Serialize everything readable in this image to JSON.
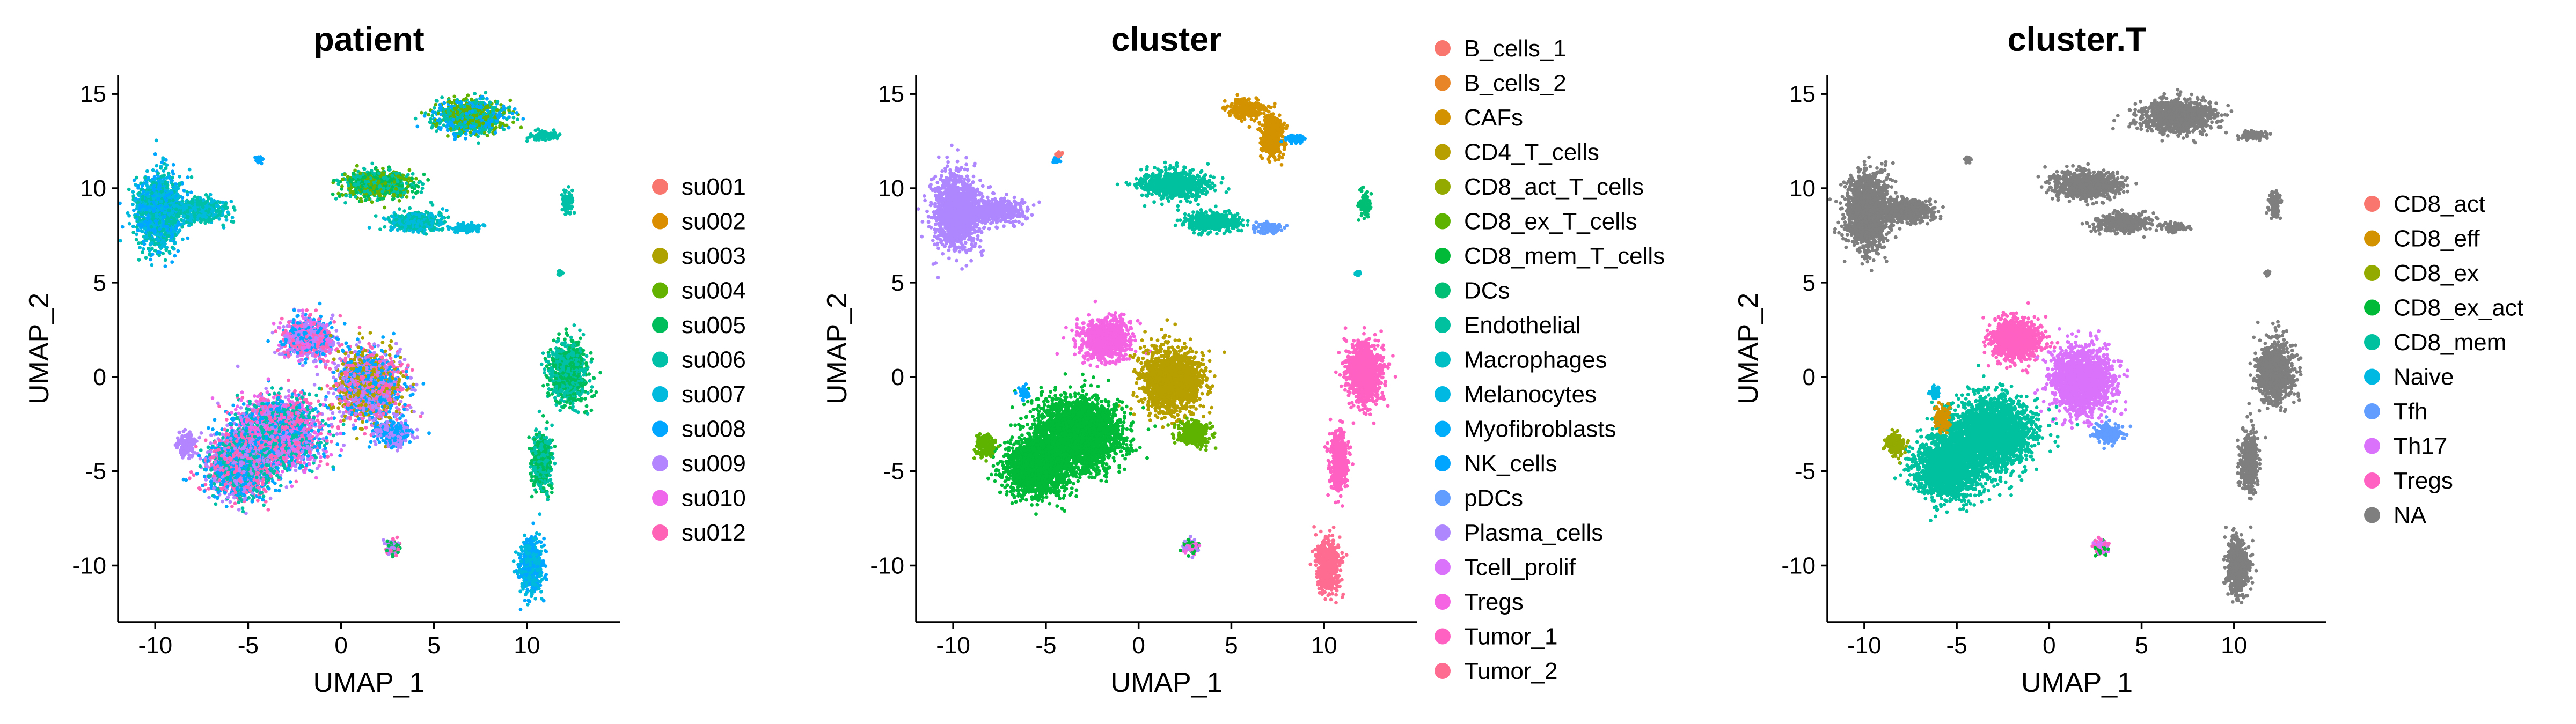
{
  "chart_data": [
    {
      "type": "scatter",
      "title": "patient",
      "xlabel": "UMAP_1",
      "ylabel": "UMAP_2",
      "xlim": [
        -12,
        15
      ],
      "ylim": [
        -13,
        16
      ],
      "xticks": [
        "-10",
        "-5",
        "0",
        "5",
        "10"
      ],
      "yticks": [
        "-10",
        "-5",
        "0",
        "5",
        "10",
        "15"
      ],
      "legend_position": "right",
      "series": [
        {
          "name": "su001",
          "color": "#F8766D"
        },
        {
          "name": "su002",
          "color": "#DB8E00"
        },
        {
          "name": "su003",
          "color": "#AEA200"
        },
        {
          "name": "su004",
          "color": "#64B200"
        },
        {
          "name": "su005",
          "color": "#00BD5C"
        },
        {
          "name": "su006",
          "color": "#00C1A7"
        },
        {
          "name": "su007",
          "color": "#00BADE"
        },
        {
          "name": "su008",
          "color": "#00A6FF"
        },
        {
          "name": "su009",
          "color": "#B385FF"
        },
        {
          "name": "su010",
          "color": "#EF67EB"
        },
        {
          "name": "su012",
          "color": "#FF63B6"
        }
      ],
      "clusters": [
        {
          "x": -9.8,
          "y": 8.8,
          "sx": 1.0,
          "sy": 1.6,
          "colors": [
            "#00C1A7",
            "#00BADE",
            "#00A6FF"
          ]
        },
        {
          "x": -7.6,
          "y": 8.8,
          "sx": 1.1,
          "sy": 0.5,
          "colors": [
            "#00C1A7",
            "#00BADE"
          ]
        },
        {
          "x": -4.4,
          "y": 11.5,
          "sx": 0.15,
          "sy": 0.15,
          "colors": [
            "#00A6FF"
          ]
        },
        {
          "x": 7.0,
          "y": 13.8,
          "sx": 1.6,
          "sy": 0.7,
          "colors": [
            "#00C1A7",
            "#64B200",
            "#00A6FF"
          ]
        },
        {
          "x": 11.0,
          "y": 12.8,
          "sx": 0.6,
          "sy": 0.2,
          "colors": [
            "#00C1A7"
          ]
        },
        {
          "x": 2.0,
          "y": 10.2,
          "sx": 1.5,
          "sy": 0.6,
          "colors": [
            "#00BD5C",
            "#00C1A7",
            "#64B200"
          ]
        },
        {
          "x": 4.0,
          "y": 8.2,
          "sx": 1.2,
          "sy": 0.4,
          "colors": [
            "#00C1A7",
            "#00BADE"
          ]
        },
        {
          "x": 6.8,
          "y": 7.9,
          "sx": 0.6,
          "sy": 0.2,
          "colors": [
            "#00BADE"
          ]
        },
        {
          "x": 12.2,
          "y": 9.2,
          "sx": 0.25,
          "sy": 0.5,
          "colors": [
            "#00C1A7"
          ]
        },
        {
          "x": 11.8,
          "y": 5.5,
          "sx": 0.1,
          "sy": 0.1,
          "colors": [
            "#00C1A7"
          ]
        },
        {
          "x": 12.2,
          "y": 0.2,
          "sx": 0.8,
          "sy": 1.3,
          "colors": [
            "#00C1A7",
            "#00BD5C"
          ]
        },
        {
          "x": 10.8,
          "y": -4.5,
          "sx": 0.4,
          "sy": 1.3,
          "colors": [
            "#00BD5C",
            "#00C1A7"
          ]
        },
        {
          "x": 10.2,
          "y": -10.0,
          "sx": 0.5,
          "sy": 1.2,
          "colors": [
            "#00A6FF",
            "#00BADE"
          ]
        },
        {
          "x": 2.8,
          "y": -9.0,
          "sx": 0.35,
          "sy": 0.35,
          "colors": [
            "#B385FF",
            "#00BD5C",
            "#FF63B6"
          ]
        },
        {
          "x": -1.8,
          "y": 2.0,
          "sx": 1.1,
          "sy": 0.9,
          "colors": [
            "#B385FF",
            "#EF67EB",
            "#FF63B6",
            "#00A6FF"
          ]
        },
        {
          "x": 1.5,
          "y": -0.5,
          "sx": 1.4,
          "sy": 1.5,
          "colors": [
            "#FF63B6",
            "#B385FF",
            "#AEA200",
            "#00A6FF"
          ]
        },
        {
          "x": 2.8,
          "y": -3.0,
          "sx": 0.8,
          "sy": 0.5,
          "colors": [
            "#B385FF",
            "#00A6FF"
          ]
        },
        {
          "x": -3.5,
          "y": -3.0,
          "sx": 1.9,
          "sy": 1.5,
          "colors": [
            "#FF63B6",
            "#B385FF",
            "#00A6FF",
            "#00C1A7",
            "#EF67EB"
          ]
        },
        {
          "x": -5.5,
          "y": -4.8,
          "sx": 1.4,
          "sy": 1.3,
          "colors": [
            "#FF63B6",
            "#B385FF",
            "#00A6FF",
            "#00C1A7"
          ]
        },
        {
          "x": -8.3,
          "y": -3.6,
          "sx": 0.4,
          "sy": 0.5,
          "colors": [
            "#B385FF"
          ]
        }
      ]
    },
    {
      "type": "scatter",
      "title": "cluster",
      "xlabel": "UMAP_1",
      "ylabel": "UMAP_2",
      "xlim": [
        -12,
        15
      ],
      "ylim": [
        -13,
        16
      ],
      "xticks": [
        "-10",
        "-5",
        "0",
        "5",
        "10"
      ],
      "yticks": [
        "-10",
        "-5",
        "0",
        "5",
        "10",
        "15"
      ],
      "legend_position": "right",
      "series": [
        {
          "name": "B_cells_1",
          "color": "#F8766D"
        },
        {
          "name": "B_cells_2",
          "color": "#E88526"
        },
        {
          "name": "CAFs",
          "color": "#D39200"
        },
        {
          "name": "CD4_T_cells",
          "color": "#B79F00"
        },
        {
          "name": "CD8_act_T_cells",
          "color": "#93AA00"
        },
        {
          "name": "CD8_ex_T_cells",
          "color": "#5EB300"
        },
        {
          "name": "CD8_mem_T_cells",
          "color": "#00BA38"
        },
        {
          "name": "DCs",
          "color": "#00BF74"
        },
        {
          "name": "Endothelial",
          "color": "#00C19F"
        },
        {
          "name": "Macrophages",
          "color": "#00BFC4"
        },
        {
          "name": "Melanocytes",
          "color": "#00B9E3"
        },
        {
          "name": "Myofibroblasts",
          "color": "#00ADFA"
        },
        {
          "name": "NK_cells",
          "color": "#00A5FF"
        },
        {
          "name": "pDCs",
          "color": "#619CFF"
        },
        {
          "name": "Plasma_cells",
          "color": "#AE87FF"
        },
        {
          "name": "Tcell_prolif",
          "color": "#DB72FB"
        },
        {
          "name": "Tregs",
          "color": "#F564E3"
        },
        {
          "name": "Tumor_1",
          "color": "#FF61C3"
        },
        {
          "name": "Tumor_2",
          "color": "#FF6C91"
        }
      ],
      "clusters": [
        {
          "x": -9.8,
          "y": 8.8,
          "sx": 1.0,
          "sy": 1.6,
          "colors": [
            "#AE87FF"
          ]
        },
        {
          "x": -7.6,
          "y": 8.8,
          "sx": 1.1,
          "sy": 0.5,
          "colors": [
            "#AE87FF"
          ]
        },
        {
          "x": -4.4,
          "y": 11.5,
          "sx": 0.15,
          "sy": 0.15,
          "colors": [
            "#00A5FF"
          ]
        },
        {
          "x": -4.3,
          "y": 11.8,
          "sx": 0.1,
          "sy": 0.1,
          "colors": [
            "#F8766D"
          ]
        },
        {
          "x": 5.8,
          "y": 14.2,
          "sx": 0.8,
          "sy": 0.4,
          "colors": [
            "#D39200"
          ]
        },
        {
          "x": 7.2,
          "y": 12.8,
          "sx": 0.5,
          "sy": 0.9,
          "colors": [
            "#D39200"
          ]
        },
        {
          "x": 8.4,
          "y": 12.6,
          "sx": 0.4,
          "sy": 0.2,
          "colors": [
            "#00A5FF"
          ]
        },
        {
          "x": 2.0,
          "y": 10.2,
          "sx": 1.5,
          "sy": 0.6,
          "colors": [
            "#00C19F"
          ]
        },
        {
          "x": 4.0,
          "y": 8.2,
          "sx": 1.2,
          "sy": 0.4,
          "colors": [
            "#00C19F"
          ]
        },
        {
          "x": 7.0,
          "y": 7.9,
          "sx": 0.6,
          "sy": 0.2,
          "colors": [
            "#619CFF"
          ]
        },
        {
          "x": 12.2,
          "y": 9.2,
          "sx": 0.25,
          "sy": 0.5,
          "colors": [
            "#00BF74"
          ]
        },
        {
          "x": 11.8,
          "y": 5.5,
          "sx": 0.1,
          "sy": 0.1,
          "colors": [
            "#00BFC4"
          ]
        },
        {
          "x": 12.2,
          "y": 0.2,
          "sx": 0.8,
          "sy": 1.3,
          "colors": [
            "#FF61C3"
          ]
        },
        {
          "x": 10.8,
          "y": -4.5,
          "sx": 0.4,
          "sy": 1.3,
          "colors": [
            "#FF61C3"
          ]
        },
        {
          "x": 10.2,
          "y": -10.0,
          "sx": 0.5,
          "sy": 1.2,
          "colors": [
            "#FF6C91"
          ]
        },
        {
          "x": 2.8,
          "y": -9.0,
          "sx": 0.35,
          "sy": 0.35,
          "colors": [
            "#AE87FF",
            "#00BA38",
            "#F564E3"
          ]
        },
        {
          "x": -1.8,
          "y": 2.0,
          "sx": 1.1,
          "sy": 0.9,
          "colors": [
            "#F564E3"
          ]
        },
        {
          "x": 1.8,
          "y": -0.2,
          "sx": 1.3,
          "sy": 1.4,
          "colors": [
            "#B79F00"
          ]
        },
        {
          "x": 3.0,
          "y": -3.0,
          "sx": 0.7,
          "sy": 0.5,
          "colors": [
            "#5EB300"
          ]
        },
        {
          "x": -3.2,
          "y": -3.0,
          "sx": 1.9,
          "sy": 1.5,
          "colors": [
            "#00BA38"
          ]
        },
        {
          "x": -5.5,
          "y": -4.8,
          "sx": 1.4,
          "sy": 1.3,
          "colors": [
            "#00BA38"
          ]
        },
        {
          "x": -8.3,
          "y": -3.6,
          "sx": 0.4,
          "sy": 0.5,
          "colors": [
            "#5EB300"
          ]
        },
        {
          "x": -6.2,
          "y": -0.8,
          "sx": 0.2,
          "sy": 0.3,
          "colors": [
            "#00A5FF"
          ]
        }
      ]
    },
    {
      "type": "scatter",
      "title": "cluster.T",
      "xlabel": "UMAP_1",
      "ylabel": "UMAP_2",
      "xlim": [
        -12,
        15
      ],
      "ylim": [
        -13,
        16
      ],
      "xticks": [
        "-10",
        "-5",
        "0",
        "5",
        "10"
      ],
      "yticks": [
        "-10",
        "-5",
        "0",
        "5",
        "10",
        "15"
      ],
      "legend_position": "right",
      "series": [
        {
          "name": "CD8_act",
          "color": "#F8766D"
        },
        {
          "name": "CD8_eff",
          "color": "#D39200"
        },
        {
          "name": "CD8_ex",
          "color": "#93AA00"
        },
        {
          "name": "CD8_ex_act",
          "color": "#00BA38"
        },
        {
          "name": "CD8_mem",
          "color": "#00C19F"
        },
        {
          "name": "Naive",
          "color": "#00B9E3"
        },
        {
          "name": "Tfh",
          "color": "#619CFF"
        },
        {
          "name": "Th17",
          "color": "#DB72FB"
        },
        {
          "name": "Tregs",
          "color": "#FF61C3"
        },
        {
          "name": "NA",
          "color": "#7F7F7F"
        }
      ],
      "clusters": [
        {
          "x": -9.8,
          "y": 8.8,
          "sx": 1.0,
          "sy": 1.6,
          "colors": [
            "#7F7F7F"
          ]
        },
        {
          "x": -7.6,
          "y": 8.8,
          "sx": 1.1,
          "sy": 0.5,
          "colors": [
            "#7F7F7F"
          ]
        },
        {
          "x": -4.4,
          "y": 11.5,
          "sx": 0.15,
          "sy": 0.15,
          "colors": [
            "#7F7F7F"
          ]
        },
        {
          "x": 7.0,
          "y": 13.8,
          "sx": 1.6,
          "sy": 0.7,
          "colors": [
            "#7F7F7F"
          ]
        },
        {
          "x": 11.0,
          "y": 12.8,
          "sx": 0.6,
          "sy": 0.2,
          "colors": [
            "#7F7F7F"
          ]
        },
        {
          "x": 2.0,
          "y": 10.2,
          "sx": 1.5,
          "sy": 0.6,
          "colors": [
            "#7F7F7F"
          ]
        },
        {
          "x": 4.0,
          "y": 8.2,
          "sx": 1.2,
          "sy": 0.4,
          "colors": [
            "#7F7F7F"
          ]
        },
        {
          "x": 6.8,
          "y": 7.9,
          "sx": 0.6,
          "sy": 0.2,
          "colors": [
            "#7F7F7F"
          ]
        },
        {
          "x": 12.2,
          "y": 9.2,
          "sx": 0.25,
          "sy": 0.5,
          "colors": [
            "#7F7F7F"
          ]
        },
        {
          "x": 11.8,
          "y": 5.5,
          "sx": 0.1,
          "sy": 0.1,
          "colors": [
            "#7F7F7F"
          ]
        },
        {
          "x": 12.2,
          "y": 0.2,
          "sx": 0.8,
          "sy": 1.3,
          "colors": [
            "#7F7F7F"
          ]
        },
        {
          "x": 10.8,
          "y": -4.5,
          "sx": 0.4,
          "sy": 1.3,
          "colors": [
            "#7F7F7F"
          ]
        },
        {
          "x": 10.2,
          "y": -10.0,
          "sx": 0.5,
          "sy": 1.2,
          "colors": [
            "#7F7F7F"
          ]
        },
        {
          "x": 2.8,
          "y": -9.0,
          "sx": 0.35,
          "sy": 0.35,
          "colors": [
            "#DB72FB",
            "#00BA38",
            "#FF61C3"
          ]
        },
        {
          "x": -1.8,
          "y": 2.0,
          "sx": 1.1,
          "sy": 0.9,
          "colors": [
            "#FF61C3"
          ]
        },
        {
          "x": 1.8,
          "y": -0.2,
          "sx": 1.3,
          "sy": 1.4,
          "colors": [
            "#DB72FB"
          ]
        },
        {
          "x": 3.2,
          "y": -3.0,
          "sx": 0.6,
          "sy": 0.4,
          "colors": [
            "#619CFF"
          ]
        },
        {
          "x": -3.2,
          "y": -3.0,
          "sx": 1.9,
          "sy": 1.5,
          "colors": [
            "#00C19F"
          ]
        },
        {
          "x": -5.5,
          "y": -4.8,
          "sx": 1.4,
          "sy": 1.3,
          "colors": [
            "#00C19F"
          ]
        },
        {
          "x": -8.3,
          "y": -3.6,
          "sx": 0.4,
          "sy": 0.5,
          "colors": [
            "#93AA00"
          ]
        },
        {
          "x": -5.8,
          "y": -2.2,
          "sx": 0.3,
          "sy": 0.5,
          "colors": [
            "#D39200"
          ]
        },
        {
          "x": -6.2,
          "y": -0.8,
          "sx": 0.2,
          "sy": 0.3,
          "colors": [
            "#00B9E3"
          ]
        }
      ]
    }
  ]
}
